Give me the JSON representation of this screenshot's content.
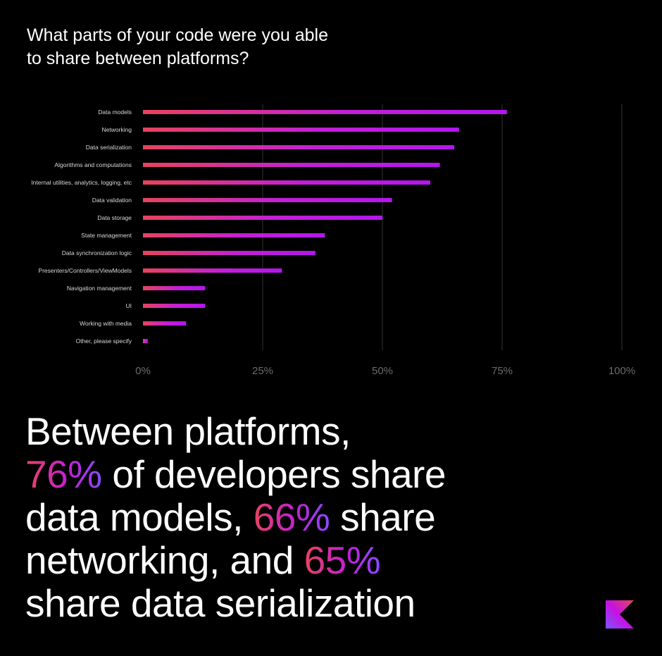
{
  "question": {
    "line1": "What parts of your code were you able",
    "line2": "to share between platforms?"
  },
  "chart_data": {
    "type": "bar",
    "orientation": "horizontal",
    "categories": [
      "Data models",
      "Networking",
      "Data serialization",
      "Algorithms and computations",
      "Internal utilities, analytics, logging, etc",
      "Data validation",
      "Data storage",
      "State management",
      "Data synchronization logic",
      "Presenters/Controllers/ViewModels",
      "Navigation management",
      "UI",
      "Working with media",
      "Other, please specify"
    ],
    "values": [
      76,
      66,
      65,
      62,
      60,
      52,
      50,
      38,
      36,
      29,
      13,
      13,
      9,
      1
    ],
    "xlim": [
      0,
      100
    ],
    "xticks": [
      "0%",
      "25%",
      "50%",
      "75%",
      "100%"
    ],
    "xtick_values": [
      0,
      25,
      50,
      75,
      100
    ],
    "grid": true,
    "bar_gradient": [
      "#e8435e",
      "#c41fd6",
      "#b316ee"
    ]
  },
  "headline": {
    "line1": "Between platforms,",
    "line2_pct": "76%",
    "line2_text": " of developers share",
    "line3_text": "data models, ",
    "line3_pct": "66%",
    "line3_tail": " share",
    "line4_text": "networking, and ",
    "line4_pct": "65%",
    "line5_text": "share data serialization"
  },
  "logo": {
    "icon": "kotlin-logo-icon"
  },
  "colors": {
    "background": "#000000",
    "text": "#ffffff",
    "gridline": "#333333",
    "axis_label": "#6b6b6b"
  }
}
